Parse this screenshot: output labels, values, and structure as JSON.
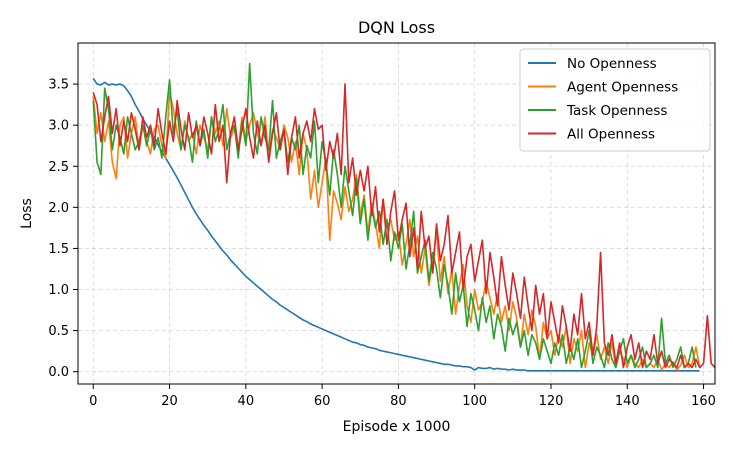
{
  "chart_data": {
    "type": "line",
    "title": "DQN Loss",
    "xlabel": "Episode x 1000",
    "ylabel": "Loss",
    "xlim": [
      -4,
      163
    ],
    "ylim": [
      -0.15,
      4.0
    ],
    "xticks": [
      0,
      20,
      40,
      60,
      80,
      100,
      120,
      140,
      160
    ],
    "xtick_labels": [
      "0",
      "20",
      "40",
      "60",
      "80",
      "100",
      "120",
      "140",
      "160"
    ],
    "yticks": [
      0.0,
      0.5,
      1.0,
      1.5,
      2.0,
      2.5,
      3.0,
      3.5
    ],
    "ytick_labels": [
      "0.0",
      "0.5",
      "1.0",
      "1.5",
      "2.0",
      "2.5",
      "3.0",
      "3.5"
    ],
    "grid": true,
    "legend_position": "top-right",
    "series": [
      {
        "name": "No Openness",
        "color": "#1f77b4",
        "values": [
          3.57,
          3.5,
          3.49,
          3.52,
          3.49,
          3.5,
          3.49,
          3.5,
          3.48,
          3.42,
          3.35,
          3.25,
          3.17,
          3.08,
          3.0,
          2.92,
          2.85,
          2.76,
          2.68,
          2.6,
          2.52,
          2.44,
          2.36,
          2.27,
          2.18,
          2.09,
          2.0,
          1.92,
          1.85,
          1.78,
          1.72,
          1.65,
          1.59,
          1.53,
          1.47,
          1.42,
          1.36,
          1.31,
          1.26,
          1.21,
          1.16,
          1.12,
          1.08,
          1.04,
          1.0,
          0.96,
          0.92,
          0.88,
          0.85,
          0.81,
          0.78,
          0.75,
          0.72,
          0.69,
          0.66,
          0.63,
          0.61,
          0.58,
          0.56,
          0.54,
          0.52,
          0.5,
          0.48,
          0.46,
          0.44,
          0.42,
          0.4,
          0.38,
          0.36,
          0.35,
          0.33,
          0.32,
          0.3,
          0.29,
          0.28,
          0.26,
          0.25,
          0.24,
          0.23,
          0.22,
          0.21,
          0.2,
          0.19,
          0.18,
          0.17,
          0.16,
          0.15,
          0.14,
          0.13,
          0.12,
          0.11,
          0.1,
          0.09,
          0.09,
          0.08,
          0.07,
          0.07,
          0.06,
          0.06,
          0.05,
          0.02,
          0.05,
          0.04,
          0.04,
          0.05,
          0.03,
          0.04,
          0.03,
          0.03,
          0.02,
          0.03,
          0.02,
          0.02,
          0.02,
          0.01,
          0.01,
          0.01,
          0.01,
          0.01,
          0.01,
          0.01,
          0.01,
          0.01,
          0.01,
          0.01,
          0.01,
          0.01,
          0.01,
          0.01,
          0.01,
          0.01,
          0.01,
          0.01,
          0.01,
          0.01,
          0.01,
          0.01,
          0.01,
          0.01,
          0.01,
          0.01,
          0.01,
          0.01,
          0.01,
          0.01,
          0.01,
          0.01,
          0.01,
          0.01,
          0.01,
          0.01,
          0.01,
          0.01,
          0.01,
          0.01,
          0.01,
          0.01,
          0.01,
          0.01,
          0.01
        ]
      },
      {
        "name": "Agent Openness",
        "color": "#ff7f0e",
        "values": [
          3.35,
          2.9,
          3.15,
          2.8,
          3.05,
          2.55,
          2.35,
          3.0,
          3.1,
          2.6,
          2.9,
          3.1,
          2.7,
          3.0,
          2.8,
          2.65,
          2.95,
          3.0,
          2.75,
          2.6,
          3.4,
          3.2,
          2.9,
          2.7,
          3.05,
          2.8,
          2.9,
          2.65,
          3.0,
          2.85,
          2.7,
          3.1,
          2.9,
          3.05,
          2.75,
          3.2,
          2.85,
          2.95,
          2.7,
          3.1,
          2.8,
          3.0,
          3.15,
          2.9,
          2.75,
          3.1,
          2.6,
          2.95,
          2.85,
          2.7,
          3.0,
          2.85,
          2.55,
          2.8,
          2.4,
          2.9,
          2.7,
          2.1,
          2.45,
          2.0,
          2.3,
          2.6,
          1.6,
          2.2,
          2.05,
          1.85,
          2.25,
          1.95,
          2.1,
          2.4,
          1.9,
          2.15,
          1.7,
          2.05,
          1.8,
          1.5,
          2.1,
          1.75,
          1.85,
          1.6,
          1.7,
          1.3,
          1.55,
          1.85,
          1.4,
          1.65,
          1.2,
          1.5,
          1.05,
          1.35,
          1.7,
          1.1,
          1.4,
          0.95,
          1.25,
          0.7,
          1.05,
          1.3,
          0.8,
          0.6,
          1.0,
          0.75,
          0.85,
          1.1,
          0.9,
          0.7,
          0.95,
          0.6,
          0.8,
          0.5,
          0.85,
          0.65,
          0.3,
          0.7,
          0.45,
          0.75,
          0.55,
          0.15,
          0.6,
          0.4,
          0.5,
          0.2,
          0.45,
          0.3,
          0.55,
          0.1,
          0.4,
          0.25,
          0.5,
          0.05,
          0.35,
          0.2,
          0.45,
          0.15,
          0.3,
          0.1,
          0.35,
          0.05,
          0.25,
          0.15,
          0.05,
          0.2,
          0.1,
          0.05,
          0.15,
          0.05,
          0.1,
          0.05,
          0.15,
          0.02,
          0.1,
          0.05,
          0.12,
          0.02,
          0.08,
          0.2,
          0.05,
          0.1,
          0.3,
          0.05
        ]
      },
      {
        "name": "Task Openness",
        "color": "#2ca02c",
        "values": [
          3.3,
          2.55,
          2.4,
          3.45,
          3.2,
          2.7,
          3.0,
          2.85,
          2.65,
          3.1,
          2.9,
          2.7,
          2.8,
          3.0,
          2.75,
          2.95,
          2.7,
          2.85,
          2.6,
          3.1,
          3.55,
          2.9,
          3.2,
          2.7,
          3.0,
          2.85,
          2.55,
          3.05,
          2.75,
          2.95,
          2.6,
          3.1,
          2.8,
          2.95,
          3.25,
          2.7,
          2.9,
          3.0,
          2.6,
          3.05,
          2.75,
          3.75,
          2.9,
          2.65,
          3.1,
          2.85,
          2.7,
          3.3,
          2.6,
          2.8,
          2.95,
          2.55,
          2.85,
          2.7,
          3.0,
          2.4,
          2.75,
          2.6,
          3.05,
          2.3,
          2.8,
          2.55,
          2.15,
          2.7,
          2.4,
          2.0,
          2.5,
          2.2,
          1.9,
          2.35,
          1.8,
          2.1,
          1.6,
          2.0,
          1.75,
          1.95,
          1.55,
          1.85,
          1.35,
          1.7,
          1.5,
          1.8,
          1.25,
          1.55,
          1.95,
          1.2,
          1.4,
          1.6,
          1.1,
          1.45,
          1.25,
          0.9,
          1.3,
          1.05,
          0.7,
          1.2,
          0.85,
          1.05,
          0.55,
          0.95,
          0.75,
          0.5,
          0.9,
          0.6,
          0.8,
          0.4,
          0.7,
          0.55,
          0.25,
          0.65,
          0.45,
          0.6,
          0.3,
          0.5,
          0.2,
          0.45,
          0.35,
          0.15,
          0.4,
          0.25,
          0.1,
          0.35,
          0.2,
          0.45,
          0.1,
          0.3,
          0.15,
          0.4,
          0.05,
          0.25,
          0.5,
          0.1,
          0.3,
          0.2,
          0.05,
          0.35,
          0.15,
          0.05,
          0.25,
          0.4,
          0.1,
          0.2,
          0.05,
          0.15,
          0.3,
          0.05,
          0.1,
          0.2,
          0.05,
          0.65,
          0.1,
          0.2,
          0.05,
          0.15,
          0.3,
          0.05,
          0.1,
          0.3,
          0.05
        ]
      },
      {
        "name": "All Openness",
        "color": "#d62728",
        "values": [
          3.4,
          3.25,
          2.8,
          3.1,
          3.35,
          2.9,
          3.2,
          2.75,
          3.05,
          2.8,
          3.15,
          2.95,
          2.7,
          3.1,
          2.85,
          3.0,
          2.75,
          3.2,
          2.9,
          2.65,
          3.05,
          2.8,
          3.3,
          2.95,
          2.7,
          3.15,
          2.85,
          3.0,
          2.75,
          3.1,
          2.9,
          2.65,
          3.25,
          2.8,
          3.0,
          2.3,
          2.9,
          3.1,
          2.7,
          2.95,
          3.2,
          2.85,
          2.6,
          3.05,
          2.75,
          3.0,
          2.55,
          2.9,
          3.15,
          2.7,
          2.95,
          2.4,
          2.85,
          3.1,
          2.6,
          2.9,
          3.05,
          2.8,
          3.2,
          2.95,
          3.0,
          2.45,
          2.8,
          2.6,
          2.9,
          2.4,
          3.5,
          2.3,
          2.6,
          2.15,
          2.45,
          2.2,
          2.5,
          1.9,
          2.25,
          1.7,
          2.1,
          1.55,
          1.95,
          2.2,
          1.6,
          1.85,
          2.05,
          1.4,
          1.75,
          1.25,
          1.95,
          1.5,
          1.65,
          1.2,
          1.8,
          1.35,
          1.55,
          1.9,
          1.2,
          1.45,
          1.7,
          1.0,
          1.4,
          1.55,
          1.1,
          1.35,
          1.6,
          0.95,
          1.45,
          1.15,
          0.8,
          1.4,
          1.05,
          0.75,
          1.2,
          0.95,
          0.65,
          1.15,
          0.8,
          0.5,
          1.05,
          0.7,
          0.95,
          0.4,
          0.85,
          0.6,
          0.35,
          0.8,
          0.55,
          0.25,
          0.7,
          0.45,
          0.95,
          0.4,
          0.6,
          0.2,
          0.55,
          1.45,
          0.35,
          0.2,
          0.45,
          0.1,
          0.35,
          0.05,
          0.3,
          0.45,
          0.15,
          0.35,
          0.05,
          0.25,
          0.15,
          0.45,
          0.1,
          0.25,
          0.05,
          0.15,
          0.1,
          0.05,
          0.2,
          0.05,
          0.1,
          0.05,
          0.15,
          0.05,
          0.1,
          0.68,
          0.1,
          0.05
        ]
      }
    ]
  }
}
